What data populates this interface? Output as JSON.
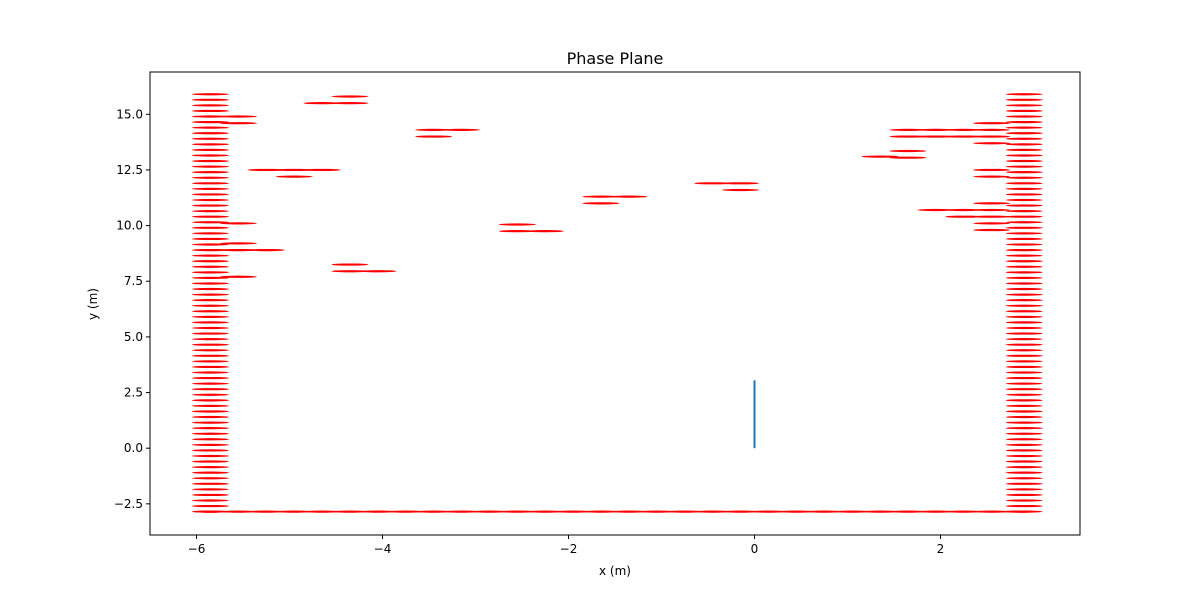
{
  "chart_data": {
    "type": "scatter",
    "title": "Phase Plane",
    "xlabel": "x (m)",
    "ylabel": "y (m)",
    "xlim": [
      -6.5,
      3.5
    ],
    "ylim": [
      -3.9,
      16.9
    ],
    "xticks": [
      -6,
      -4,
      -2,
      0,
      2
    ],
    "yticks": [
      -2.5,
      0.0,
      2.5,
      5.0,
      7.5,
      10.0,
      12.5,
      15.0
    ],
    "xtick_labels": [
      "−6",
      "−4",
      "−2",
      "0",
      "2"
    ],
    "ytick_labels": [
      "−2.5",
      "0.0",
      "2.5",
      "5.0",
      "7.5",
      "10.0",
      "12.5",
      "15.0"
    ],
    "grid": false,
    "obstacle_color": "#ff0000",
    "trajectory_color": "#1f77b4",
    "obstacle_radius_x": 0.2,
    "obstacle_radius_y": 0.2,
    "wall_left_x": -5.85,
    "wall_right_x": 2.9,
    "wall_y_range": [
      -2.85,
      16.0
    ],
    "wall_y_step": 0.25,
    "floor_y": -2.85,
    "floor_x_range": [
      -5.85,
      2.9
    ],
    "floor_x_step": 0.3,
    "obstacles": [
      {
        "x": -5.55,
        "y": 14.9
      },
      {
        "x": -5.55,
        "y": 14.6
      },
      {
        "x": -4.65,
        "y": 15.5
      },
      {
        "x": -4.35,
        "y": 15.8
      },
      {
        "x": -4.35,
        "y": 15.5
      },
      {
        "x": -5.25,
        "y": 12.5
      },
      {
        "x": -4.95,
        "y": 12.5
      },
      {
        "x": -4.95,
        "y": 12.2
      },
      {
        "x": -4.65,
        "y": 12.5
      },
      {
        "x": -5.55,
        "y": 10.1
      },
      {
        "x": -5.55,
        "y": 9.2
      },
      {
        "x": -5.55,
        "y": 8.9
      },
      {
        "x": -5.25,
        "y": 8.9
      },
      {
        "x": -5.55,
        "y": 7.7
      },
      {
        "x": -4.35,
        "y": 8.25
      },
      {
        "x": -4.35,
        "y": 7.95
      },
      {
        "x": -4.05,
        "y": 7.95
      },
      {
        "x": -3.45,
        "y": 14.3
      },
      {
        "x": -3.45,
        "y": 14.0
      },
      {
        "x": -3.15,
        "y": 14.3
      },
      {
        "x": -2.55,
        "y": 10.05
      },
      {
        "x": -2.55,
        "y": 9.75
      },
      {
        "x": -2.25,
        "y": 9.75
      },
      {
        "x": -1.65,
        "y": 11.3
      },
      {
        "x": -1.65,
        "y": 11.0
      },
      {
        "x": -1.35,
        "y": 11.3
      },
      {
        "x": -0.45,
        "y": 11.9
      },
      {
        "x": -0.15,
        "y": 11.9
      },
      {
        "x": -0.15,
        "y": 11.6
      },
      {
        "x": 1.35,
        "y": 13.1
      },
      {
        "x": 1.65,
        "y": 13.35
      },
      {
        "x": 1.65,
        "y": 13.05
      },
      {
        "x": 1.65,
        "y": 14.3
      },
      {
        "x": 1.65,
        "y": 14.0
      },
      {
        "x": 1.95,
        "y": 14.3
      },
      {
        "x": 1.95,
        "y": 14.0
      },
      {
        "x": 2.25,
        "y": 14.3
      },
      {
        "x": 2.25,
        "y": 14.0
      },
      {
        "x": 2.55,
        "y": 14.6
      },
      {
        "x": 2.55,
        "y": 14.3
      },
      {
        "x": 2.55,
        "y": 14.0
      },
      {
        "x": 2.55,
        "y": 13.7
      },
      {
        "x": 1.95,
        "y": 10.7
      },
      {
        "x": 2.25,
        "y": 10.7
      },
      {
        "x": 2.25,
        "y": 10.4
      },
      {
        "x": 2.55,
        "y": 11.0
      },
      {
        "x": 2.55,
        "y": 10.7
      },
      {
        "x": 2.55,
        "y": 10.4
      },
      {
        "x": 2.55,
        "y": 10.1
      },
      {
        "x": 2.55,
        "y": 9.8
      },
      {
        "x": 2.55,
        "y": 12.5
      },
      {
        "x": 2.55,
        "y": 12.2
      }
    ],
    "trajectory": {
      "x": [
        0,
        0
      ],
      "y": [
        0,
        3.05
      ]
    }
  }
}
